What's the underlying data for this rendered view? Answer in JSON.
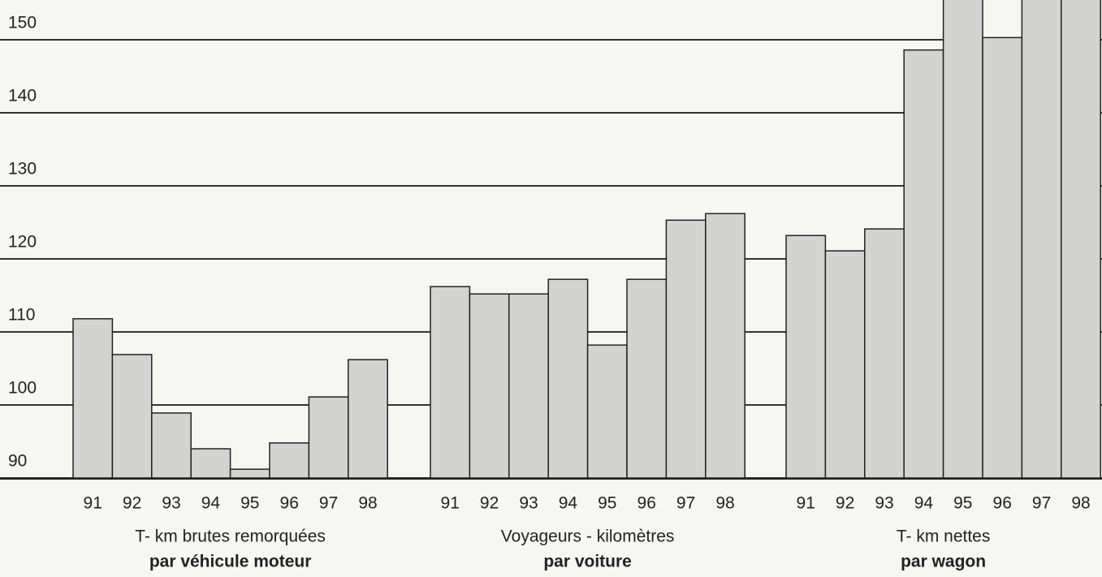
{
  "chart_data": {
    "type": "bar",
    "color": "#d3d3d1",
    "grid": true,
    "ylim": [
      90,
      155
    ],
    "yticks": [
      90,
      100,
      110,
      120,
      130,
      140,
      150
    ],
    "groups": [
      {
        "label": "T- km brutes remorquées",
        "sublabel": "par véhicule moteur",
        "categories": [
          "91",
          "92",
          "93",
          "94",
          "95",
          "96",
          "97",
          "98"
        ],
        "values": [
          111.8,
          106.9,
          98.9,
          94,
          91.2,
          94.8,
          101.1,
          106.2
        ]
      },
      {
        "label": "Voyageurs - kilomètres",
        "sublabel": "par voiture",
        "categories": [
          "91",
          "92",
          "93",
          "94",
          "95",
          "96",
          "97",
          "98"
        ],
        "values": [
          116.2,
          115.2,
          115.2,
          117.2,
          108.2,
          117.2,
          125.3,
          126.2
        ]
      },
      {
        "label": "T- km nettes",
        "sublabel": "par wagon",
        "categories": [
          "91",
          "92",
          "93",
          "94",
          "95",
          "96",
          "97",
          "98"
        ],
        "values": [
          123.2,
          121.1,
          124.1,
          148.6,
          156,
          150.3,
          158,
          156
        ]
      }
    ]
  }
}
